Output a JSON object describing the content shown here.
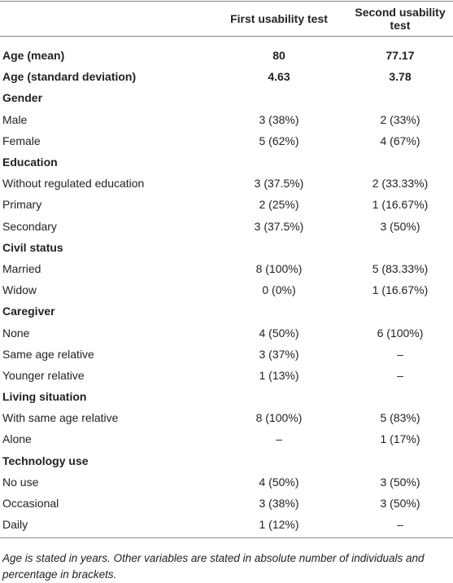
{
  "table": {
    "header": {
      "col1": "First usability test",
      "col2": "Second usability test"
    },
    "rows": [
      {
        "label": "Age (mean)",
        "bold": true,
        "values": [
          "80",
          "77.17"
        ]
      },
      {
        "label": "Age (standard deviation)",
        "bold": true,
        "values": [
          "4.63",
          "3.78"
        ]
      },
      {
        "label": "Gender",
        "bold": true
      },
      {
        "label": "Male",
        "values": [
          "3 (38%)",
          "2 (33%)"
        ]
      },
      {
        "label": "Female",
        "values": [
          "5 (62%)",
          "4 (67%)"
        ]
      },
      {
        "label": "Education",
        "bold": true
      },
      {
        "label": "Without regulated education",
        "values": [
          "3 (37.5%)",
          "2 (33.33%)"
        ]
      },
      {
        "label": "Primary",
        "values": [
          "2 (25%)",
          "1 (16.67%)"
        ]
      },
      {
        "label": "Secondary",
        "values": [
          "3 (37.5%)",
          "3 (50%)"
        ]
      },
      {
        "label": "Civil status",
        "bold": true
      },
      {
        "label": "Married",
        "values": [
          "8 (100%)",
          "5 (83.33%)"
        ]
      },
      {
        "label": "Widow",
        "values": [
          "0 (0%)",
          "1 (16.67%)"
        ]
      },
      {
        "label": "Caregiver",
        "bold": true
      },
      {
        "label": "None",
        "values": [
          "4 (50%)",
          "6 (100%)"
        ]
      },
      {
        "label": "Same age relative",
        "values": [
          "3 (37%)",
          "–"
        ]
      },
      {
        "label": "Younger relative",
        "values": [
          "1 (13%)",
          "–"
        ]
      },
      {
        "label": "Living situation",
        "bold": true
      },
      {
        "label": "With same age relative",
        "values": [
          "8 (100%)",
          "5 (83%)"
        ]
      },
      {
        "label": "Alone",
        "values": [
          "–",
          "1 (17%)"
        ]
      },
      {
        "label": "Technology use",
        "bold": true
      },
      {
        "label": "No use",
        "values": [
          "4 (50%)",
          "3 (50%)"
        ]
      },
      {
        "label": "Occasional",
        "values": [
          "3 (38%)",
          "3 (50%)"
        ]
      },
      {
        "label": "Daily",
        "values": [
          "1 (12%)",
          "–"
        ]
      }
    ]
  },
  "footnote": "Age is stated in years. Other variables are stated in absolute number of individuals and percentage in brackets."
}
